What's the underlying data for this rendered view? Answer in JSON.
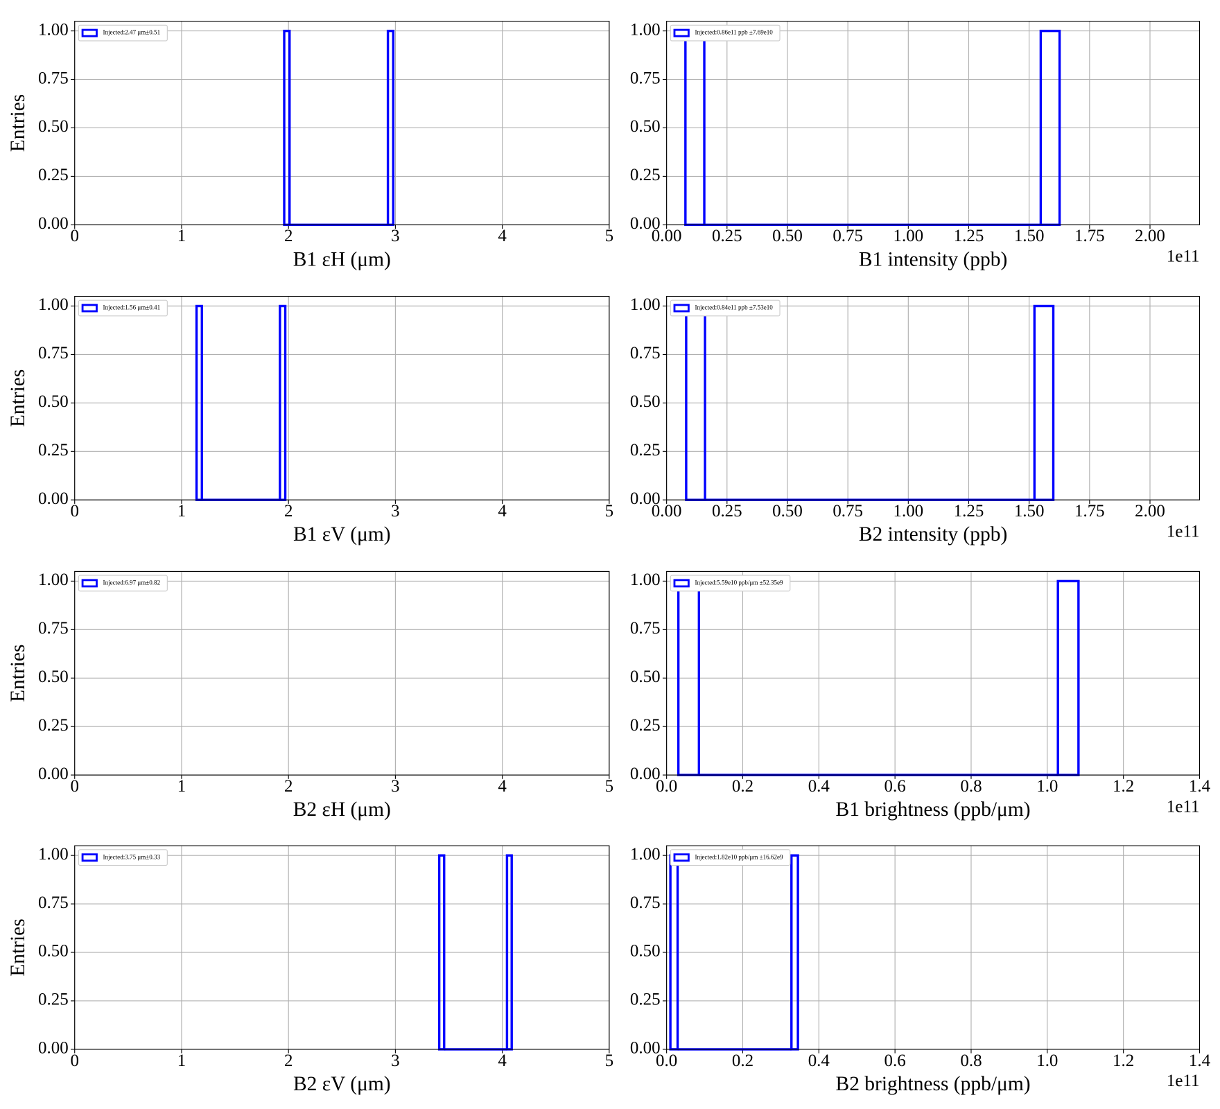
{
  "chart_data": [
    {
      "type": "histogram",
      "xlabel": "B1 εH (μm)",
      "ylabel": "Entries",
      "xlim": [
        0,
        5
      ],
      "ylim": [
        0,
        1.05
      ],
      "xticks": [
        0,
        1,
        2,
        3,
        4,
        5
      ],
      "yticks": [
        {
          "value": 0,
          "label": "0.00"
        },
        {
          "value": 0.25,
          "label": "0.25"
        },
        {
          "value": 0.5,
          "label": "0.50"
        },
        {
          "value": 0.75,
          "label": "0.75"
        },
        {
          "value": 1,
          "label": "1.00"
        }
      ],
      "grid": true,
      "legend": "upper left",
      "series": [
        {
          "name": "Injected:2.47 μm±0.51",
          "color": "#0000ff",
          "bins": [
            1.96,
            2.01,
            2.93,
            2.98
          ],
          "counts": [
            1,
            0,
            1
          ]
        }
      ]
    },
    {
      "type": "histogram",
      "xlabel": "B1 intensity (ppb)",
      "offset_text": "1e11",
      "xlim": [
        0,
        2.205
      ],
      "ylim": [
        0,
        1.05
      ],
      "xticks": [
        {
          "value": 0,
          "label": "0.00"
        },
        {
          "value": 0.25,
          "label": "0.25"
        },
        {
          "value": 0.5,
          "label": "0.50"
        },
        {
          "value": 0.75,
          "label": "0.75"
        },
        {
          "value": 1,
          "label": "1.00"
        },
        {
          "value": 1.25,
          "label": "1.25"
        },
        {
          "value": 1.5,
          "label": "1.50"
        },
        {
          "value": 1.75,
          "label": "1.75"
        },
        {
          "value": 2,
          "label": "2.00"
        }
      ],
      "yticks": [
        {
          "value": 0,
          "label": "0.00"
        },
        {
          "value": 0.25,
          "label": "0.25"
        },
        {
          "value": 0.5,
          "label": "0.50"
        },
        {
          "value": 0.75,
          "label": "0.75"
        },
        {
          "value": 1,
          "label": "1.00"
        }
      ],
      "grid": true,
      "legend": "upper left",
      "series": [
        {
          "name": "Injected:0.86e11 ppb ±7.69e10",
          "color": "#0000ff",
          "bins": [
            0.078,
            0.156,
            1.548,
            1.626
          ],
          "counts": [
            1,
            0,
            1
          ]
        }
      ]
    },
    {
      "type": "histogram",
      "xlabel": "B1 εV (μm)",
      "ylabel": "Entries",
      "xlim": [
        0,
        5
      ],
      "ylim": [
        0,
        1.05
      ],
      "xticks": [
        0,
        1,
        2,
        3,
        4,
        5
      ],
      "yticks": [
        {
          "value": 0,
          "label": "0.00"
        },
        {
          "value": 0.25,
          "label": "0.25"
        },
        {
          "value": 0.5,
          "label": "0.50"
        },
        {
          "value": 0.75,
          "label": "0.75"
        },
        {
          "value": 1,
          "label": "1.00"
        }
      ],
      "grid": true,
      "legend": "upper left",
      "series": [
        {
          "name": "Injected:1.56 μm±0.41",
          "color": "#0000ff",
          "bins": [
            1.14,
            1.19,
            1.92,
            1.97
          ],
          "counts": [
            1,
            0,
            1
          ]
        }
      ]
    },
    {
      "type": "histogram",
      "xlabel": "B2 intensity (ppb)",
      "offset_text": "1e11",
      "xlim": [
        0,
        2.205
      ],
      "ylim": [
        0,
        1.05
      ],
      "xticks": [
        {
          "value": 0,
          "label": "0.00"
        },
        {
          "value": 0.25,
          "label": "0.25"
        },
        {
          "value": 0.5,
          "label": "0.50"
        },
        {
          "value": 0.75,
          "label": "0.75"
        },
        {
          "value": 1,
          "label": "1.00"
        },
        {
          "value": 1.25,
          "label": "1.25"
        },
        {
          "value": 1.5,
          "label": "1.50"
        },
        {
          "value": 1.75,
          "label": "1.75"
        },
        {
          "value": 2,
          "label": "2.00"
        }
      ],
      "yticks": [
        {
          "value": 0,
          "label": "0.00"
        },
        {
          "value": 0.25,
          "label": "0.25"
        },
        {
          "value": 0.5,
          "label": "0.50"
        },
        {
          "value": 0.75,
          "label": "0.75"
        },
        {
          "value": 1,
          "label": "1.00"
        }
      ],
      "grid": true,
      "legend": "upper left",
      "series": [
        {
          "name": "Injected:0.84e11 ppb ±7.53e10",
          "color": "#0000ff",
          "bins": [
            0.081,
            0.159,
            1.522,
            1.6
          ],
          "counts": [
            1,
            0,
            1
          ]
        }
      ]
    },
    {
      "type": "histogram",
      "xlabel": "B2 εH (μm)",
      "ylabel": "Entries",
      "xlim": [
        0,
        5
      ],
      "ylim": [
        0,
        1.05
      ],
      "xticks": [
        0,
        1,
        2,
        3,
        4,
        5
      ],
      "yticks": [
        {
          "value": 0,
          "label": "0.00"
        },
        {
          "value": 0.25,
          "label": "0.25"
        },
        {
          "value": 0.5,
          "label": "0.50"
        },
        {
          "value": 0.75,
          "label": "0.75"
        },
        {
          "value": 1,
          "label": "1.00"
        }
      ],
      "grid": true,
      "legend": "upper left",
      "series": [
        {
          "name": "Injected:6.97 μm±0.82",
          "color": "#0000ff"
        }
      ]
    },
    {
      "type": "histogram",
      "xlabel": "B1 brightness (ppb/μm)",
      "offset_text": "1e11",
      "xlim": [
        0,
        1.4
      ],
      "ylim": [
        0,
        1.05
      ],
      "xticks": [
        {
          "value": 0,
          "label": "0.0"
        },
        0.2,
        0.4,
        0.6,
        0.8,
        {
          "value": 1,
          "label": "1.0"
        },
        1.2,
        1.4
      ],
      "yticks": [
        {
          "value": 0,
          "label": "0.00"
        },
        {
          "value": 0.25,
          "label": "0.25"
        },
        {
          "value": 0.5,
          "label": "0.50"
        },
        {
          "value": 0.75,
          "label": "0.75"
        },
        {
          "value": 1,
          "label": "1.00"
        }
      ],
      "grid": true,
      "legend": "upper left",
      "series": [
        {
          "name": "Injected:5.59e10 ppb/μm ±52.35e9",
          "color": "#0000ff",
          "bins": [
            0.031,
            0.085,
            1.028,
            1.082
          ],
          "counts": [
            1,
            0,
            1
          ]
        }
      ]
    },
    {
      "type": "histogram",
      "xlabel": "B2 εV (μm)",
      "ylabel": "Entries",
      "xlim": [
        0,
        5
      ],
      "ylim": [
        0,
        1.05
      ],
      "xticks": [
        0,
        1,
        2,
        3,
        4,
        5
      ],
      "yticks": [
        {
          "value": 0,
          "label": "0.00"
        },
        {
          "value": 0.25,
          "label": "0.25"
        },
        {
          "value": 0.5,
          "label": "0.50"
        },
        {
          "value": 0.75,
          "label": "0.75"
        },
        {
          "value": 1,
          "label": "1.00"
        }
      ],
      "grid": true,
      "legend": "upper left",
      "series": [
        {
          "name": "Injected:3.75 μm±0.33",
          "color": "#0000ff",
          "bins": [
            3.41,
            3.456,
            4.044,
            4.088
          ],
          "counts": [
            1,
            0,
            1
          ]
        }
      ]
    },
    {
      "type": "histogram",
      "xlabel": "B2 brightness (ppb/μm)",
      "offset_text": "1e11",
      "xlim": [
        0,
        1.4
      ],
      "ylim": [
        0,
        1.05
      ],
      "xticks": [
        {
          "value": 0,
          "label": "0.0"
        },
        0.2,
        0.4,
        0.6,
        0.8,
        {
          "value": 1,
          "label": "1.0"
        },
        1.2,
        1.4
      ],
      "yticks": [
        {
          "value": 0,
          "label": "0.00"
        },
        {
          "value": 0.25,
          "label": "0.25"
        },
        {
          "value": 0.5,
          "label": "0.50"
        },
        {
          "value": 0.75,
          "label": "0.75"
        },
        {
          "value": 1,
          "label": "1.00"
        }
      ],
      "grid": true,
      "legend": "upper left",
      "series": [
        {
          "name": "Injected:1.82e10 ppb/μm ±16.62e9",
          "color": "#0000ff",
          "bins": [
            0.01,
            0.029,
            0.328,
            0.345
          ],
          "counts": [
            1,
            0,
            1
          ]
        }
      ]
    }
  ]
}
